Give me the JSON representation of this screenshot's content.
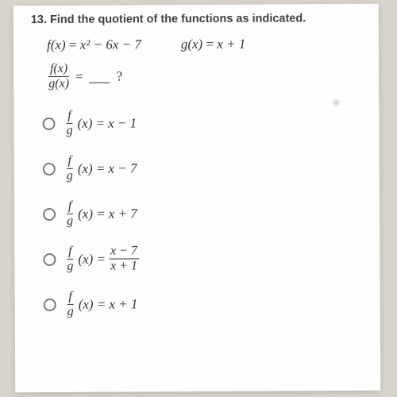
{
  "question": {
    "number": "13.",
    "prompt": "Find the quotient of the functions as indicated.",
    "f_def_lhs": "f(x)",
    "f_def_rhs": "x² − 6x − 7",
    "g_def_lhs": "g(x)",
    "g_def_rhs": "x + 1",
    "ratio_num": "f(x)",
    "ratio_den": "g(x)",
    "equals": "=",
    "qmark": "?"
  },
  "option_label": {
    "num": "f",
    "den": "g",
    "arg": "(x) ="
  },
  "options": [
    {
      "rhs": "x − 1",
      "is_frac": false
    },
    {
      "rhs": "x − 7",
      "is_frac": false
    },
    {
      "rhs": "x + 7",
      "is_frac": false
    },
    {
      "rhs_num": "x − 7",
      "rhs_den": "x + 1",
      "is_frac": true
    },
    {
      "rhs": "x + 1",
      "is_frac": false
    }
  ],
  "style": {
    "bg": "#d8d4cb",
    "paper": "#fefefe",
    "text": "#333333",
    "heading": "#3e3e3e",
    "radio_border": "#7a7a7a",
    "heading_fontsize": 14.5,
    "math_fontsize": 17
  }
}
